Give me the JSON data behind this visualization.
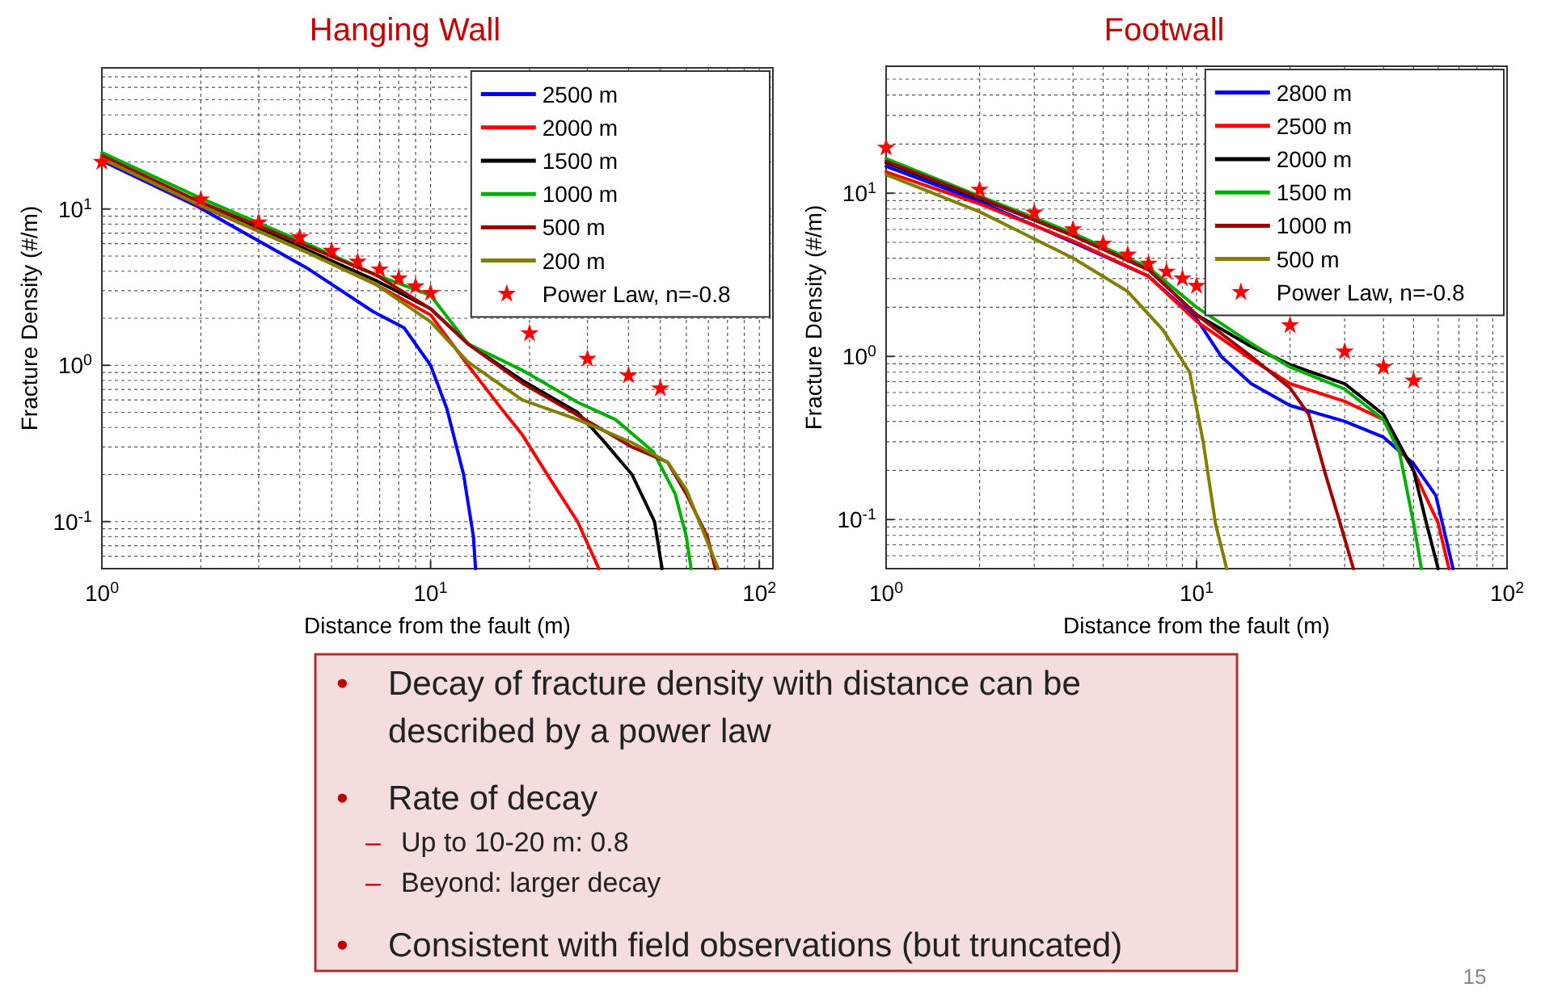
{
  "chart_data": [
    {
      "type": "line",
      "title": "Hanging Wall",
      "xlabel": "Distance from the fault (m)",
      "ylabel": "Fracture Density (#/m)",
      "log": "xy",
      "grid": true,
      "legend": "top right",
      "xlim": [
        1,
        110
      ],
      "ylim": [
        0.05,
        80
      ],
      "xticks": [
        {
          "value": 1,
          "label": "10$^{0}$"
        },
        {
          "value": 10,
          "label": "10$^{1}$"
        },
        {
          "value": 100,
          "label": "10$^{2}$"
        }
      ],
      "yticks": [
        {
          "value": 0.1,
          "label": "10$^{-1}$"
        },
        {
          "value": 1,
          "label": "10$^{0}$"
        },
        {
          "value": 10,
          "label": "10$^{1}$"
        }
      ],
      "series": [
        {
          "name": "2500 m",
          "color": "#0000ff",
          "x": [
            1,
            1.95,
            4.2,
            6.7,
            8.3,
            10,
            11.2,
            12.6,
            13.5,
            13.7
          ],
          "values": [
            20.4,
            10.4,
            4.2,
            2.2,
            1.74,
            1.0,
            0.53,
            0.2,
            0.08,
            0.05
          ]
        },
        {
          "name": "2000 m",
          "color": "#ff0000",
          "x": [
            1,
            1.95,
            4.2,
            6.8,
            10,
            13,
            16.4,
            19,
            23,
            28,
            32.5
          ],
          "values": [
            21,
            10.7,
            5.3,
            3.3,
            2.1,
            1.0,
            0.53,
            0.36,
            0.19,
            0.1,
            0.05
          ]
        },
        {
          "name": "1500 m",
          "color": "#000000",
          "x": [
            1,
            1.95,
            4.2,
            6.8,
            10,
            13,
            19,
            28,
            33.5,
            41,
            48,
            50.6
          ],
          "values": [
            21.5,
            11,
            5.5,
            3.5,
            2.3,
            1.37,
            0.8,
            0.5,
            0.33,
            0.2,
            0.1,
            0.05
          ]
        },
        {
          "name": "1000 m",
          "color": "#00b000",
          "x": [
            1,
            1.95,
            4.2,
            6.8,
            10,
            13,
            19,
            28,
            36.5,
            47.6,
            55.5,
            60,
            62
          ],
          "values": [
            23,
            12,
            6.0,
            3.8,
            2.8,
            1.37,
            0.93,
            0.58,
            0.45,
            0.28,
            0.15,
            0.08,
            0.05
          ]
        },
        {
          "name": "500 m",
          "color": "#a00000",
          "x": [
            1,
            1.95,
            4.2,
            6.8,
            10,
            13,
            19,
            28,
            41,
            52.6,
            60,
            69.5,
            73.5
          ],
          "values": [
            22,
            11.3,
            5.8,
            3.8,
            2.3,
            1.37,
            0.77,
            0.48,
            0.3,
            0.24,
            0.15,
            0.08,
            0.05
          ]
        },
        {
          "name": "200 m",
          "color": "#808000",
          "x": [
            1,
            1.95,
            4.2,
            6.8,
            10,
            13,
            19,
            28,
            41,
            52.6,
            60,
            75
          ],
          "values": [
            21,
            10.8,
            5.3,
            3.3,
            1.9,
            1.05,
            0.6,
            0.45,
            0.32,
            0.24,
            0.16,
            0.05
          ]
        },
        {
          "name": "Power Law, n=-0.8",
          "type": "scatter",
          "marker": "star",
          "color": "#ff0000",
          "x": [
            1,
            2,
            3,
            4,
            5,
            6,
            7,
            8,
            9,
            10,
            20,
            30,
            40,
            50
          ],
          "values": [
            20,
            11.5,
            8.2,
            6.6,
            5.4,
            4.6,
            4.1,
            3.6,
            3.2,
            2.9,
            1.6,
            1.1,
            0.86,
            0.71
          ]
        }
      ]
    },
    {
      "type": "line",
      "title": "Footwall",
      "xlabel": "Distance from the fault (m)",
      "ylabel": "Fracture Density (#/m)",
      "log": "xy",
      "grid": true,
      "legend": "top right",
      "xlim": [
        1,
        100
      ],
      "ylim": [
        0.05,
        60
      ],
      "xticks": [
        {
          "value": 1,
          "label": "10$^{0}$"
        },
        {
          "value": 10,
          "label": "10$^{1}$"
        },
        {
          "value": 100,
          "label": "10$^{2}$"
        }
      ],
      "yticks": [
        {
          "value": 0.1,
          "label": "10$^{-1}$"
        },
        {
          "value": 1,
          "label": "10$^{0}$"
        },
        {
          "value": 10,
          "label": "10$^{1}$"
        }
      ],
      "series": [
        {
          "name": "2800 m",
          "color": "#0000ff",
          "x": [
            1,
            2,
            4,
            7,
            10,
            12,
            15,
            20,
            30,
            40,
            50,
            59,
            67
          ],
          "values": [
            14.6,
            8.9,
            5.0,
            3.1,
            1.7,
            1.0,
            0.68,
            0.5,
            0.4,
            0.32,
            0.22,
            0.14,
            0.05
          ]
        },
        {
          "name": "2500 m",
          "color": "#ff0000",
          "x": [
            1,
            2,
            4,
            7,
            10,
            15,
            20,
            30,
            40,
            50,
            60,
            65
          ],
          "values": [
            13.5,
            8.6,
            5.1,
            3.1,
            1.64,
            0.96,
            0.68,
            0.53,
            0.41,
            0.2,
            0.095,
            0.05
          ]
        },
        {
          "name": "2000 m",
          "color": "#000000",
          "x": [
            1,
            2,
            4,
            7,
            10,
            15,
            20,
            30,
            40,
            50,
            55,
            60
          ],
          "values": [
            15.4,
            9.3,
            5.5,
            3.4,
            1.8,
            1.15,
            0.89,
            0.68,
            0.44,
            0.2,
            0.095,
            0.05
          ]
        },
        {
          "name": "1500 m",
          "color": "#00b000",
          "x": [
            1,
            2,
            4,
            7,
            10,
            15,
            20,
            30,
            40,
            45,
            50,
            53
          ],
          "values": [
            16.3,
            9.6,
            5.7,
            3.5,
            2.0,
            1.2,
            0.86,
            0.63,
            0.41,
            0.26,
            0.095,
            0.05
          ]
        },
        {
          "name": "1000 m",
          "color": "#a00000",
          "x": [
            1,
            2,
            4,
            7,
            10,
            15,
            20,
            23,
            26,
            29,
            32
          ],
          "values": [
            15.7,
            9.4,
            5.5,
            3.4,
            1.8,
            1.0,
            0.64,
            0.44,
            0.19,
            0.095,
            0.05
          ]
        },
        {
          "name": "500 m",
          "color": "#808000",
          "x": [
            1,
            2,
            4,
            6,
            7.8,
            9.5,
            10.5,
            11.5,
            12.5
          ],
          "values": [
            13,
            7.7,
            4.0,
            2.5,
            1.45,
            0.8,
            0.3,
            0.095,
            0.05
          ]
        },
        {
          "name": "Power Law, n=-0.8",
          "type": "scatter",
          "marker": "star",
          "color": "#ff0000",
          "x": [
            1,
            2,
            3,
            4,
            5,
            6,
            7,
            8,
            9,
            10,
            20,
            30,
            40,
            50
          ],
          "values": [
            19,
            10.5,
            7.6,
            6.0,
            4.9,
            4.2,
            3.7,
            3.3,
            3.0,
            2.7,
            1.55,
            1.07,
            0.86,
            0.71
          ]
        }
      ]
    },
    {
      "type": "other",
      "annotations": [
        "• Decay of fracture density with distance can be described by a power law",
        "• Rate of decay",
        "– Up to 10-20 m: 0.8",
        "– Beyond: larger decay",
        "• Consistent with field observations (but truncated)",
        "15"
      ]
    }
  ]
}
